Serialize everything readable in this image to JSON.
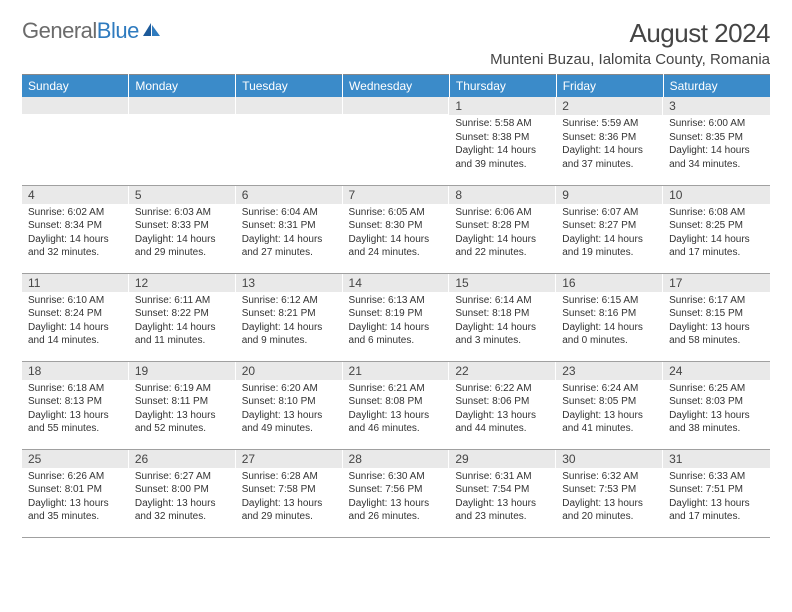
{
  "logo": {
    "text_gray": "General",
    "text_blue": "Blue"
  },
  "title": "August 2024",
  "location": "Munteni Buzau, Ialomita County, Romania",
  "colors": {
    "header_bg": "#3b8bc9",
    "header_text": "#ffffff",
    "daynum_bg": "#e9e9e9",
    "body_text": "#333333",
    "rule": "#a0a0a0",
    "logo_gray": "#6b6b6b",
    "logo_blue": "#2f7bbf"
  },
  "weekdays": [
    "Sunday",
    "Monday",
    "Tuesday",
    "Wednesday",
    "Thursday",
    "Friday",
    "Saturday"
  ],
  "weeks": [
    [
      {
        "n": "",
        "lines": []
      },
      {
        "n": "",
        "lines": []
      },
      {
        "n": "",
        "lines": []
      },
      {
        "n": "",
        "lines": []
      },
      {
        "n": "1",
        "lines": [
          "Sunrise: 5:58 AM",
          "Sunset: 8:38 PM",
          "Daylight: 14 hours and 39 minutes."
        ]
      },
      {
        "n": "2",
        "lines": [
          "Sunrise: 5:59 AM",
          "Sunset: 8:36 PM",
          "Daylight: 14 hours and 37 minutes."
        ]
      },
      {
        "n": "3",
        "lines": [
          "Sunrise: 6:00 AM",
          "Sunset: 8:35 PM",
          "Daylight: 14 hours and 34 minutes."
        ]
      }
    ],
    [
      {
        "n": "4",
        "lines": [
          "Sunrise: 6:02 AM",
          "Sunset: 8:34 PM",
          "Daylight: 14 hours and 32 minutes."
        ]
      },
      {
        "n": "5",
        "lines": [
          "Sunrise: 6:03 AM",
          "Sunset: 8:33 PM",
          "Daylight: 14 hours and 29 minutes."
        ]
      },
      {
        "n": "6",
        "lines": [
          "Sunrise: 6:04 AM",
          "Sunset: 8:31 PM",
          "Daylight: 14 hours and 27 minutes."
        ]
      },
      {
        "n": "7",
        "lines": [
          "Sunrise: 6:05 AM",
          "Sunset: 8:30 PM",
          "Daylight: 14 hours and 24 minutes."
        ]
      },
      {
        "n": "8",
        "lines": [
          "Sunrise: 6:06 AM",
          "Sunset: 8:28 PM",
          "Daylight: 14 hours and 22 minutes."
        ]
      },
      {
        "n": "9",
        "lines": [
          "Sunrise: 6:07 AM",
          "Sunset: 8:27 PM",
          "Daylight: 14 hours and 19 minutes."
        ]
      },
      {
        "n": "10",
        "lines": [
          "Sunrise: 6:08 AM",
          "Sunset: 8:25 PM",
          "Daylight: 14 hours and 17 minutes."
        ]
      }
    ],
    [
      {
        "n": "11",
        "lines": [
          "Sunrise: 6:10 AM",
          "Sunset: 8:24 PM",
          "Daylight: 14 hours and 14 minutes."
        ]
      },
      {
        "n": "12",
        "lines": [
          "Sunrise: 6:11 AM",
          "Sunset: 8:22 PM",
          "Daylight: 14 hours and 11 minutes."
        ]
      },
      {
        "n": "13",
        "lines": [
          "Sunrise: 6:12 AM",
          "Sunset: 8:21 PM",
          "Daylight: 14 hours and 9 minutes."
        ]
      },
      {
        "n": "14",
        "lines": [
          "Sunrise: 6:13 AM",
          "Sunset: 8:19 PM",
          "Daylight: 14 hours and 6 minutes."
        ]
      },
      {
        "n": "15",
        "lines": [
          "Sunrise: 6:14 AM",
          "Sunset: 8:18 PM",
          "Daylight: 14 hours and 3 minutes."
        ]
      },
      {
        "n": "16",
        "lines": [
          "Sunrise: 6:15 AM",
          "Sunset: 8:16 PM",
          "Daylight: 14 hours and 0 minutes."
        ]
      },
      {
        "n": "17",
        "lines": [
          "Sunrise: 6:17 AM",
          "Sunset: 8:15 PM",
          "Daylight: 13 hours and 58 minutes."
        ]
      }
    ],
    [
      {
        "n": "18",
        "lines": [
          "Sunrise: 6:18 AM",
          "Sunset: 8:13 PM",
          "Daylight: 13 hours and 55 minutes."
        ]
      },
      {
        "n": "19",
        "lines": [
          "Sunrise: 6:19 AM",
          "Sunset: 8:11 PM",
          "Daylight: 13 hours and 52 minutes."
        ]
      },
      {
        "n": "20",
        "lines": [
          "Sunrise: 6:20 AM",
          "Sunset: 8:10 PM",
          "Daylight: 13 hours and 49 minutes."
        ]
      },
      {
        "n": "21",
        "lines": [
          "Sunrise: 6:21 AM",
          "Sunset: 8:08 PM",
          "Daylight: 13 hours and 46 minutes."
        ]
      },
      {
        "n": "22",
        "lines": [
          "Sunrise: 6:22 AM",
          "Sunset: 8:06 PM",
          "Daylight: 13 hours and 44 minutes."
        ]
      },
      {
        "n": "23",
        "lines": [
          "Sunrise: 6:24 AM",
          "Sunset: 8:05 PM",
          "Daylight: 13 hours and 41 minutes."
        ]
      },
      {
        "n": "24",
        "lines": [
          "Sunrise: 6:25 AM",
          "Sunset: 8:03 PM",
          "Daylight: 13 hours and 38 minutes."
        ]
      }
    ],
    [
      {
        "n": "25",
        "lines": [
          "Sunrise: 6:26 AM",
          "Sunset: 8:01 PM",
          "Daylight: 13 hours and 35 minutes."
        ]
      },
      {
        "n": "26",
        "lines": [
          "Sunrise: 6:27 AM",
          "Sunset: 8:00 PM",
          "Daylight: 13 hours and 32 minutes."
        ]
      },
      {
        "n": "27",
        "lines": [
          "Sunrise: 6:28 AM",
          "Sunset: 7:58 PM",
          "Daylight: 13 hours and 29 minutes."
        ]
      },
      {
        "n": "28",
        "lines": [
          "Sunrise: 6:30 AM",
          "Sunset: 7:56 PM",
          "Daylight: 13 hours and 26 minutes."
        ]
      },
      {
        "n": "29",
        "lines": [
          "Sunrise: 6:31 AM",
          "Sunset: 7:54 PM",
          "Daylight: 13 hours and 23 minutes."
        ]
      },
      {
        "n": "30",
        "lines": [
          "Sunrise: 6:32 AM",
          "Sunset: 7:53 PM",
          "Daylight: 13 hours and 20 minutes."
        ]
      },
      {
        "n": "31",
        "lines": [
          "Sunrise: 6:33 AM",
          "Sunset: 7:51 PM",
          "Daylight: 13 hours and 17 minutes."
        ]
      }
    ]
  ]
}
